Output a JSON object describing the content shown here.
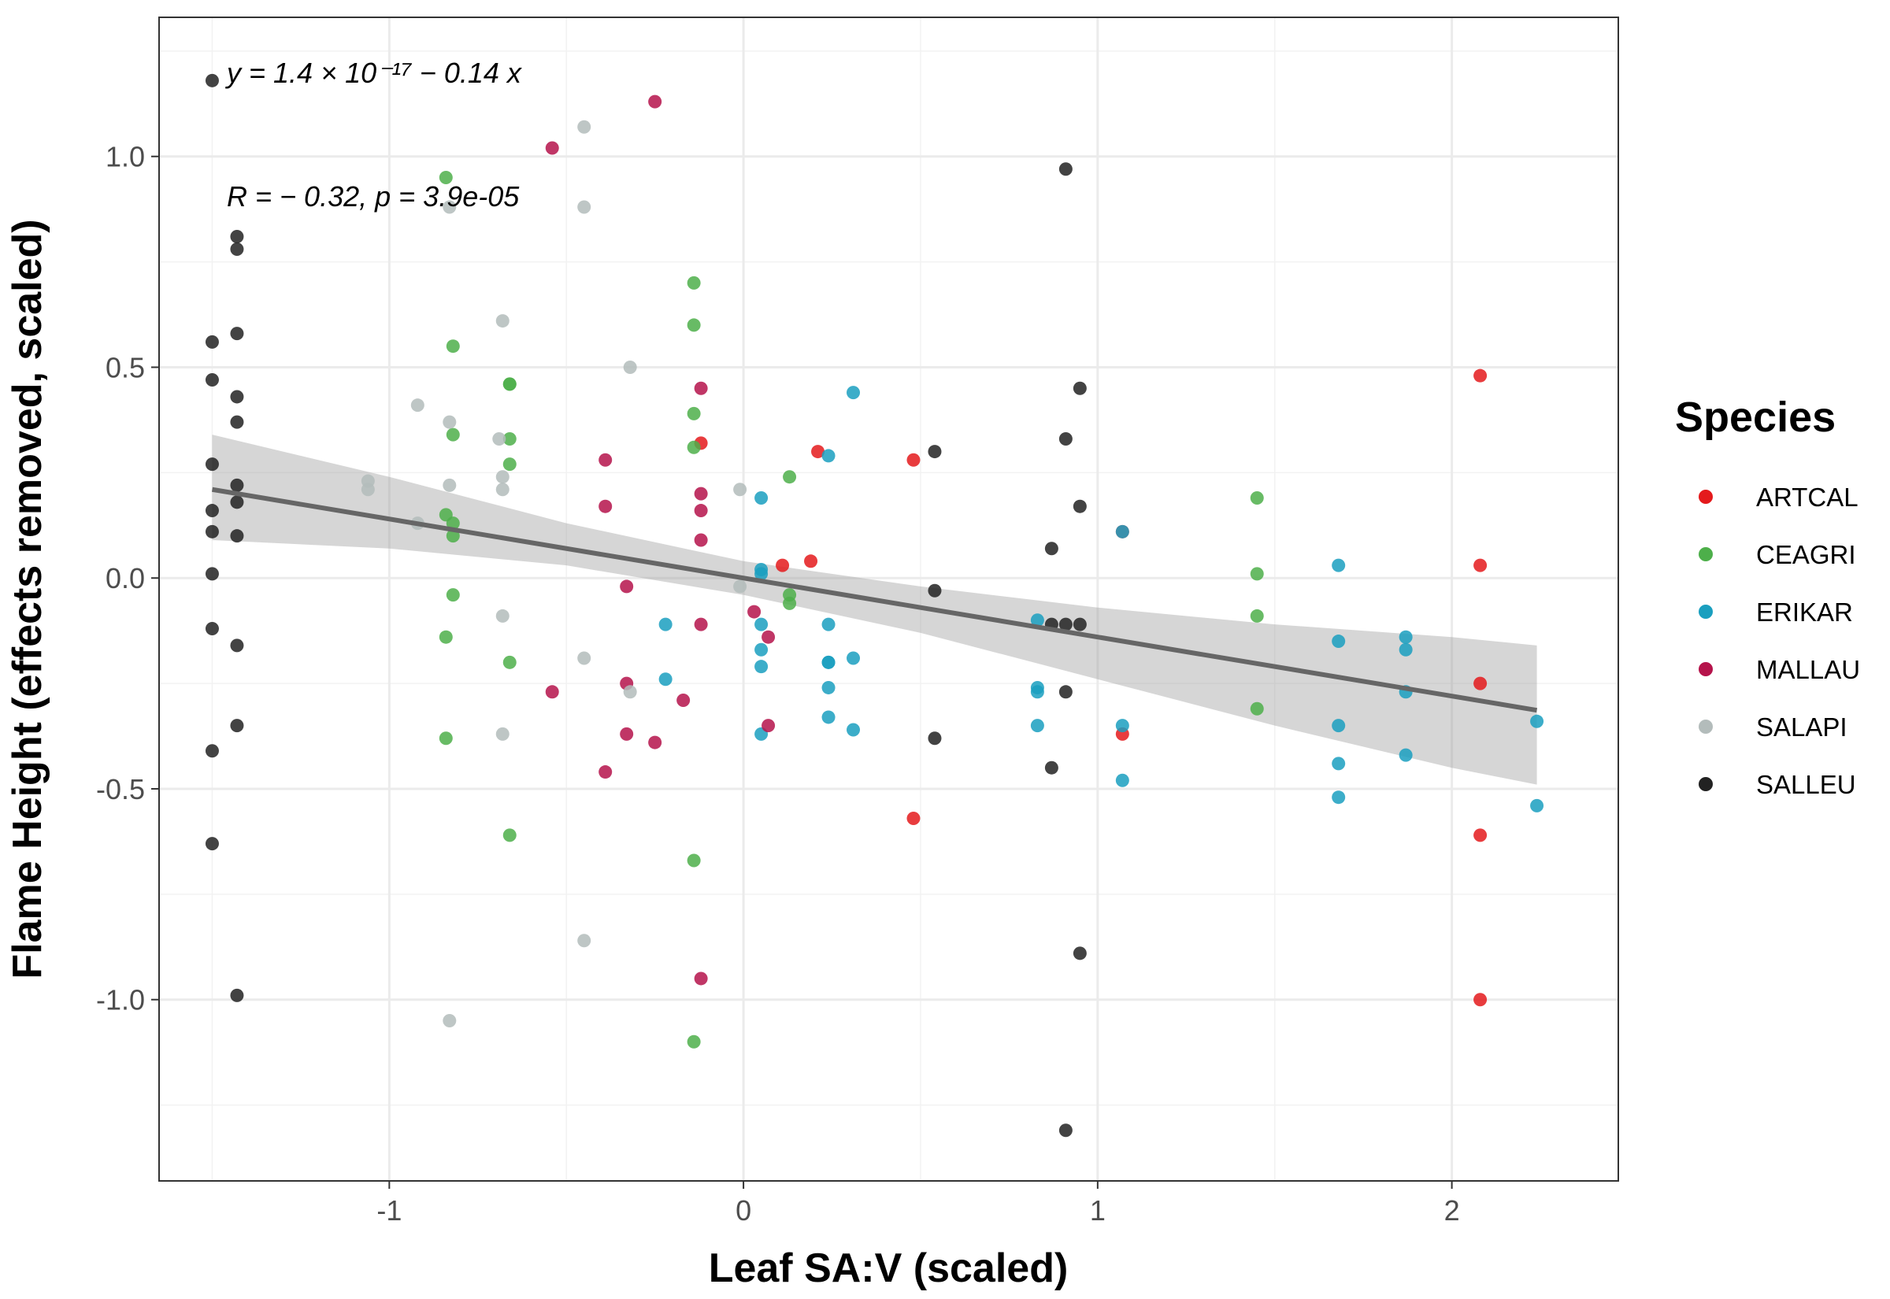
{
  "chart_data": {
    "type": "scatter",
    "xlabel": "Leaf SA:V (scaled)",
    "ylabel": "Flame Height (effects removed, scaled)",
    "xlim": [
      -1.65,
      2.47
    ],
    "ylim": [
      -1.43,
      1.33
    ],
    "x_ticks": [
      -1,
      0,
      1,
      2
    ],
    "x_tick_labels": [
      "-1",
      "0",
      "1",
      "2"
    ],
    "y_ticks": [
      -1.0,
      -0.5,
      0.0,
      0.5,
      1.0
    ],
    "y_tick_labels": [
      "-1.0",
      "-0.5",
      "0.0",
      "0.5",
      "1.0"
    ],
    "grid": true,
    "legend": {
      "title": "Species",
      "position": "right"
    },
    "annotations": {
      "equation": "y = 1.4 × 10⁻¹⁷ − 0.14 x",
      "stats": "R = − 0.32, p = 3.9e-05"
    },
    "regression": {
      "intercept": 0.0,
      "slope": -0.14,
      "x_range": [
        -1.5,
        2.24
      ],
      "ci": [
        {
          "x": -1.5,
          "lo": 0.09,
          "hi": 0.34
        },
        {
          "x": -1.0,
          "lo": 0.07,
          "hi": 0.24
        },
        {
          "x": -0.5,
          "lo": 0.03,
          "hi": 0.13
        },
        {
          "x": 0.0,
          "lo": -0.04,
          "hi": 0.04
        },
        {
          "x": 0.5,
          "lo": -0.13,
          "hi": -0.02
        },
        {
          "x": 1.0,
          "lo": -0.24,
          "hi": -0.07
        },
        {
          "x": 1.5,
          "lo": -0.35,
          "hi": -0.11
        },
        {
          "x": 2.0,
          "lo": -0.45,
          "hi": -0.14
        },
        {
          "x": 2.24,
          "lo": -0.49,
          "hi": -0.16
        }
      ]
    },
    "series": [
      {
        "name": "ARTCAL",
        "color": "#e41a1c",
        "points": [
          [
            -0.12,
            0.32
          ],
          [
            0.11,
            0.03
          ],
          [
            0.19,
            0.04
          ],
          [
            0.21,
            0.3
          ],
          [
            0.48,
            0.28
          ],
          [
            0.48,
            -0.57
          ],
          [
            1.07,
            0.11
          ],
          [
            1.07,
            -0.37
          ],
          [
            2.08,
            0.48
          ],
          [
            2.08,
            0.03
          ],
          [
            2.08,
            -0.25
          ],
          [
            2.08,
            -0.61
          ],
          [
            2.08,
            -1.0
          ]
        ]
      },
      {
        "name": "CEAGRI",
        "color": "#4daf4a",
        "points": [
          [
            -0.84,
            0.95
          ],
          [
            -0.84,
            0.15
          ],
          [
            -0.84,
            -0.14
          ],
          [
            -0.84,
            -0.38
          ],
          [
            -0.82,
            0.55
          ],
          [
            -0.82,
            0.34
          ],
          [
            -0.82,
            0.13
          ],
          [
            -0.82,
            0.1
          ],
          [
            -0.82,
            -0.04
          ],
          [
            -0.66,
            0.46
          ],
          [
            -0.66,
            0.46
          ],
          [
            -0.66,
            0.33
          ],
          [
            -0.66,
            0.27
          ],
          [
            -0.66,
            -0.2
          ],
          [
            -0.66,
            -0.61
          ],
          [
            -0.14,
            0.7
          ],
          [
            -0.14,
            0.6
          ],
          [
            -0.14,
            0.39
          ],
          [
            -0.14,
            0.31
          ],
          [
            -0.14,
            -0.67
          ],
          [
            -0.14,
            -1.1
          ],
          [
            0.13,
            0.24
          ],
          [
            0.13,
            -0.04
          ],
          [
            0.13,
            -0.06
          ],
          [
            1.45,
            0.19
          ],
          [
            1.45,
            0.01
          ],
          [
            1.45,
            -0.09
          ],
          [
            1.45,
            -0.31
          ]
        ]
      },
      {
        "name": "ERIKAR",
        "color": "#1a9fbf",
        "points": [
          [
            -0.22,
            -0.11
          ],
          [
            -0.22,
            -0.24
          ],
          [
            0.05,
            0.19
          ],
          [
            0.05,
            0.02
          ],
          [
            0.05,
            0.01
          ],
          [
            0.05,
            -0.11
          ],
          [
            0.05,
            -0.17
          ],
          [
            0.05,
            -0.21
          ],
          [
            0.05,
            -0.37
          ],
          [
            0.24,
            0.29
          ],
          [
            0.24,
            -0.11
          ],
          [
            0.24,
            -0.2
          ],
          [
            0.24,
            -0.2
          ],
          [
            0.24,
            -0.26
          ],
          [
            0.24,
            -0.33
          ],
          [
            0.31,
            0.44
          ],
          [
            0.31,
            -0.19
          ],
          [
            0.31,
            -0.36
          ],
          [
            0.83,
            -0.1
          ],
          [
            0.83,
            -0.26
          ],
          [
            0.83,
            -0.27
          ],
          [
            0.83,
            -0.35
          ],
          [
            1.07,
            0.11
          ],
          [
            1.07,
            -0.35
          ],
          [
            1.07,
            -0.48
          ],
          [
            1.68,
            0.03
          ],
          [
            1.68,
            -0.15
          ],
          [
            1.68,
            -0.35
          ],
          [
            1.68,
            -0.44
          ],
          [
            1.68,
            -0.52
          ],
          [
            1.87,
            -0.14
          ],
          [
            1.87,
            -0.17
          ],
          [
            1.87,
            -0.27
          ],
          [
            1.87,
            -0.42
          ],
          [
            2.24,
            -0.34
          ],
          [
            2.24,
            -0.54
          ]
        ]
      },
      {
        "name": "MALLAU",
        "color": "#b5134b",
        "points": [
          [
            -0.54,
            1.02
          ],
          [
            -0.54,
            -0.27
          ],
          [
            -0.39,
            0.28
          ],
          [
            -0.39,
            0.17
          ],
          [
            -0.39,
            -0.46
          ],
          [
            -0.33,
            -0.02
          ],
          [
            -0.33,
            -0.25
          ],
          [
            -0.33,
            -0.37
          ],
          [
            -0.25,
            1.13
          ],
          [
            -0.25,
            -0.39
          ],
          [
            -0.17,
            -0.29
          ],
          [
            -0.12,
            0.45
          ],
          [
            -0.12,
            0.2
          ],
          [
            -0.12,
            0.16
          ],
          [
            -0.12,
            0.09
          ],
          [
            -0.12,
            -0.11
          ],
          [
            -0.12,
            -0.95
          ],
          [
            0.03,
            -0.08
          ],
          [
            0.07,
            -0.14
          ],
          [
            0.07,
            -0.35
          ]
        ]
      },
      {
        "name": "SALAPI",
        "color": "#b3bcbb",
        "points": [
          [
            -1.06,
            0.23
          ],
          [
            -1.06,
            0.21
          ],
          [
            -0.92,
            0.41
          ],
          [
            -0.92,
            0.13
          ],
          [
            -0.83,
            0.88
          ],
          [
            -0.83,
            0.37
          ],
          [
            -0.83,
            0.22
          ],
          [
            -0.83,
            -1.05
          ],
          [
            -0.69,
            0.33
          ],
          [
            -0.68,
            0.61
          ],
          [
            -0.68,
            0.24
          ],
          [
            -0.68,
            0.21
          ],
          [
            -0.68,
            -0.09
          ],
          [
            -0.68,
            -0.37
          ],
          [
            -0.45,
            1.07
          ],
          [
            -0.45,
            0.88
          ],
          [
            -0.45,
            -0.19
          ],
          [
            -0.45,
            -0.86
          ],
          [
            -0.32,
            0.5
          ],
          [
            -0.32,
            -0.27
          ],
          [
            -0.01,
            0.21
          ],
          [
            -0.01,
            -0.02
          ]
        ]
      },
      {
        "name": "SALLEU",
        "color": "#222222",
        "points": [
          [
            -1.5,
            1.18
          ],
          [
            -1.5,
            0.56
          ],
          [
            -1.5,
            0.47
          ],
          [
            -1.5,
            0.27
          ],
          [
            -1.5,
            0.16
          ],
          [
            -1.5,
            0.11
          ],
          [
            -1.5,
            0.01
          ],
          [
            -1.5,
            -0.12
          ],
          [
            -1.5,
            -0.41
          ],
          [
            -1.5,
            -0.63
          ],
          [
            -1.43,
            0.81
          ],
          [
            -1.43,
            0.78
          ],
          [
            -1.43,
            0.58
          ],
          [
            -1.43,
            0.43
          ],
          [
            -1.43,
            0.37
          ],
          [
            -1.43,
            0.22
          ],
          [
            -1.43,
            0.18
          ],
          [
            -1.43,
            0.1
          ],
          [
            -1.43,
            -0.16
          ],
          [
            -1.43,
            -0.35
          ],
          [
            -1.43,
            -0.99
          ],
          [
            0.54,
            0.3
          ],
          [
            0.54,
            -0.03
          ],
          [
            0.54,
            -0.38
          ],
          [
            0.87,
            0.07
          ],
          [
            0.87,
            -0.11
          ],
          [
            0.87,
            -0.45
          ],
          [
            0.91,
            0.97
          ],
          [
            0.91,
            0.33
          ],
          [
            0.91,
            -0.11
          ],
          [
            0.91,
            -0.27
          ],
          [
            0.91,
            -1.31
          ],
          [
            0.95,
            0.45
          ],
          [
            0.95,
            0.17
          ],
          [
            0.95,
            -0.11
          ],
          [
            0.95,
            -0.89
          ]
        ]
      }
    ]
  }
}
